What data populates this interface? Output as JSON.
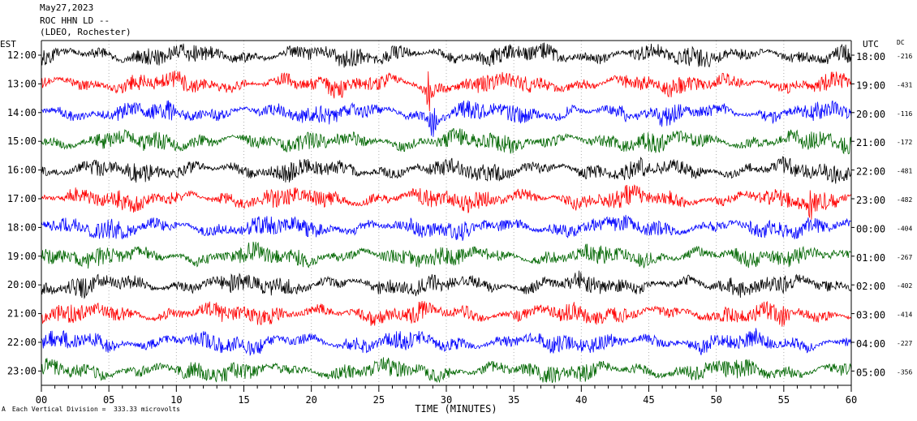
{
  "header": {
    "date": "May27,2023",
    "station": "ROC HHN LD --",
    "network": "(LDEO, Rochester)"
  },
  "labels": {
    "left_timezone": "EST",
    "right_timezone": "UTC",
    "dc": "DC"
  },
  "footer": {
    "mark": "A",
    "note": "Each Vertical Division =  333.33 microvolts"
  },
  "colors": {
    "trace_cycle": [
      "#000000",
      "#ff0000",
      "#0000ff",
      "#006600"
    ],
    "axis": "#000000",
    "grid": "#b0b0b0"
  },
  "chart_data": {
    "type": "line",
    "title": "",
    "xlabel": "TIME (MINUTES)",
    "ylabel": "",
    "xlim": [
      0,
      60
    ],
    "x_ticks": [
      "00",
      "05",
      "10",
      "15",
      "20",
      "25",
      "30",
      "35",
      "40",
      "45",
      "50",
      "55",
      "60"
    ],
    "grid": true,
    "rows": [
      {
        "est": "12:00",
        "utc": "18:00",
        "dc": "-216"
      },
      {
        "est": "13:00",
        "utc": "19:00",
        "dc": "-431"
      },
      {
        "est": "14:00",
        "utc": "20:00",
        "dc": "-116"
      },
      {
        "est": "15:00",
        "utc": "21:00",
        "dc": "-172"
      },
      {
        "est": "16:00",
        "utc": "22:00",
        "dc": "-481"
      },
      {
        "est": "17:00",
        "utc": "23:00",
        "dc": "-482"
      },
      {
        "est": "18:00",
        "utc": "00:00",
        "dc": "-404"
      },
      {
        "est": "19:00",
        "utc": "01:00",
        "dc": "-267"
      },
      {
        "est": "20:00",
        "utc": "02:00",
        "dc": "-402"
      },
      {
        "est": "21:00",
        "utc": "03:00",
        "dc": "-414"
      },
      {
        "est": "22:00",
        "utc": "04:00",
        "dc": "-227"
      },
      {
        "est": "23:00",
        "utc": "05:00",
        "dc": "-356"
      }
    ],
    "events": [
      {
        "row": 1,
        "minute": 28.7,
        "amplitude": 2.2
      },
      {
        "row": 2,
        "minute": 29.0,
        "amplitude": 2.0
      },
      {
        "row": 5,
        "minute": 57.0,
        "amplitude": 1.3
      },
      {
        "row": 9,
        "minute": 53.0,
        "amplitude": 1.1
      },
      {
        "row": 9,
        "minute": 55.0,
        "amplitude": 1.6
      }
    ]
  }
}
